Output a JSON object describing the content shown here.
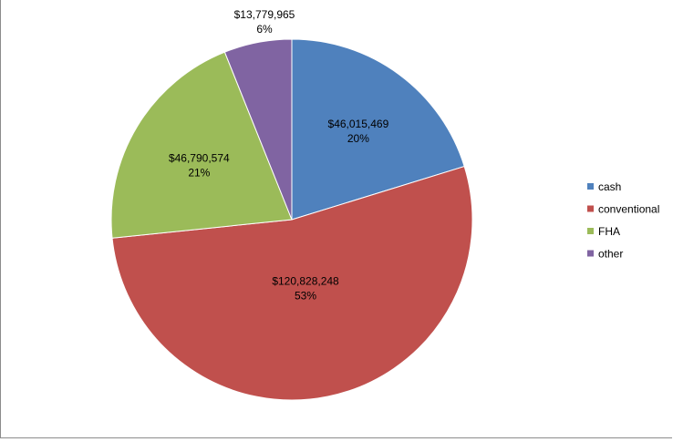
{
  "chart_data": {
    "type": "pie",
    "title": "",
    "legend_position": "right",
    "start_angle_deg": 0,
    "direction": "clockwise",
    "slices": [
      {
        "name": "cash",
        "value": 46015469,
        "value_label": "$46,015,469",
        "percent_label": "20%",
        "color": "#4F81BD"
      },
      {
        "name": "conventional",
        "value": 120828248,
        "value_label": "$120,828,248",
        "percent_label": "53%",
        "color": "#C0504D"
      },
      {
        "name": "FHA",
        "value": 46790574,
        "value_label": "$46,790,574",
        "percent_label": "21%",
        "color": "#9BBB59"
      },
      {
        "name": "other",
        "value": 13779965,
        "value_label": "$13,779,965",
        "percent_label": "6%",
        "color": "#8064A2"
      }
    ]
  }
}
